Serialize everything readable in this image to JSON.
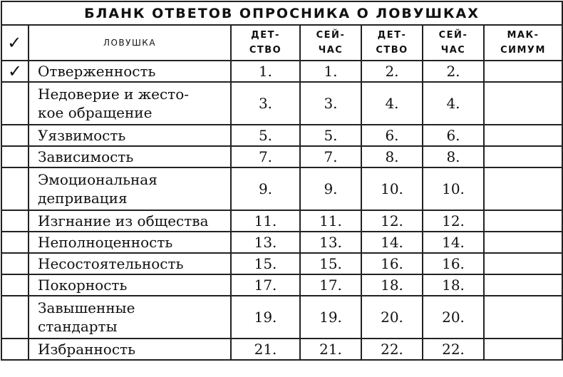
{
  "title": "БЛАНК ОТВЕТОВ ОПРОСНИКА О ЛОВУШКАХ",
  "header": {
    "check": "✓",
    "trap": "Ловушка",
    "col1": [
      "Дет-",
      "ство"
    ],
    "col2": [
      "Сей-",
      "час"
    ],
    "col3": [
      "Дет-",
      "ство"
    ],
    "col4": [
      "Сей-",
      "час"
    ],
    "max": [
      "Мак-",
      "симум"
    ]
  },
  "rows": [
    {
      "check": "✓",
      "name": [
        "Отверженность"
      ],
      "nums": [
        "1.",
        "1.",
        "2.",
        "2."
      ],
      "max": ""
    },
    {
      "check": "",
      "name": [
        "Недоверие и жесто-",
        "кое обращение"
      ],
      "nums": [
        "3.",
        "3.",
        "4.",
        "4."
      ],
      "max": ""
    },
    {
      "check": "",
      "name": [
        "Уязвимость"
      ],
      "nums": [
        "5.",
        "5.",
        "6.",
        "6."
      ],
      "max": ""
    },
    {
      "check": "",
      "name": [
        "Зависимость"
      ],
      "nums": [
        "7.",
        "7.",
        "8.",
        "8."
      ],
      "max": ""
    },
    {
      "check": "",
      "name": [
        "Эмоциональная",
        "депривация"
      ],
      "nums": [
        "9.",
        "9.",
        "10.",
        "10."
      ],
      "max": ""
    },
    {
      "check": "",
      "name": [
        "Изгнание из общества"
      ],
      "nums": [
        "11.",
        "11.",
        "12.",
        "12."
      ],
      "max": ""
    },
    {
      "check": "",
      "name": [
        "Неполноценность"
      ],
      "nums": [
        "13.",
        "13.",
        "14.",
        "14."
      ],
      "max": ""
    },
    {
      "check": "",
      "name": [
        "Несостоятельность"
      ],
      "nums": [
        "15.",
        "15.",
        "16.",
        "16."
      ],
      "max": ""
    },
    {
      "check": "",
      "name": [
        "Покорность"
      ],
      "nums": [
        "17.",
        "17.",
        "18.",
        "18."
      ],
      "max": ""
    },
    {
      "check": "",
      "name": [
        "Завышенные",
        "стандарты"
      ],
      "nums": [
        "19.",
        "19.",
        "20.",
        "20."
      ],
      "max": ""
    },
    {
      "check": "",
      "name": [
        "Избранность"
      ],
      "nums": [
        "21.",
        "21.",
        "22.",
        "22."
      ],
      "max": ""
    }
  ]
}
